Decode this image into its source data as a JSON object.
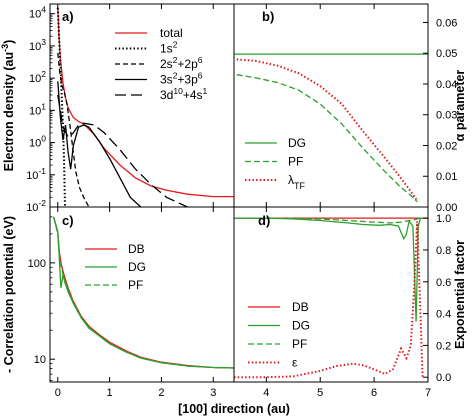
{
  "x_axis_title": "[100] direction (au)",
  "chart_data": [
    {
      "panel": "a)",
      "type": "line",
      "ylabel": "Electron density (au⁻³)",
      "yscale": "log",
      "xlim": [
        -0.15,
        3.4
      ],
      "ylim": [
        0.01,
        20000
      ],
      "x_ticks": [
        "0",
        "1",
        "2",
        "3"
      ],
      "x_tick_values": [
        0,
        1,
        2,
        3
      ],
      "y_ticks": [
        "10⁻²",
        "10⁻¹",
        "10⁰",
        "10¹",
        "10²",
        "10³",
        "10⁴"
      ],
      "y_tick_values": [
        0.01,
        0.1,
        1,
        10,
        100,
        1000,
        10000
      ],
      "grid": false,
      "legend_position": "top-right",
      "series": [
        {
          "name": "total",
          "color": "#e31a1c",
          "dash": "solid",
          "x": [
            0,
            0.02,
            0.05,
            0.1,
            0.15,
            0.2,
            0.3,
            0.4,
            0.5,
            0.7,
            0.9,
            1.2,
            1.5,
            1.8,
            2.1,
            2.5,
            3.0,
            3.4
          ],
          "y": [
            16000,
            2500,
            400,
            70,
            25,
            12,
            6,
            4.5,
            3.8,
            1.8,
            0.65,
            0.2,
            0.08,
            0.045,
            0.033,
            0.025,
            0.021,
            0.021
          ]
        },
        {
          "name": "1s²",
          "color": "#000000",
          "dash": "dotted",
          "x": [
            0,
            0.02,
            0.04,
            0.06,
            0.08,
            0.1,
            0.12,
            0.14
          ],
          "y": [
            15000,
            3000,
            600,
            120,
            20,
            3,
            0.35,
            0.01
          ]
        },
        {
          "name": "2s²+2p⁶",
          "color": "#000000",
          "dash": "short-dash",
          "x": [
            0,
            0.04,
            0.08,
            0.12,
            0.18,
            0.24,
            0.3,
            0.35,
            0.42,
            0.5,
            0.6
          ],
          "y": [
            600,
            150,
            60,
            40,
            15,
            3,
            0.5,
            0.12,
            0.04,
            0.02,
            0.01
          ]
        },
        {
          "name": "3s²+3p⁶",
          "color": "#000000",
          "dash": "solid",
          "x": [
            0,
            0.05,
            0.1,
            0.15,
            0.2,
            0.25,
            0.3,
            0.4,
            0.5,
            0.6,
            0.8,
            1.0,
            1.2,
            1.4,
            1.6
          ],
          "y": [
            80,
            6,
            1.2,
            3.5,
            0.5,
            0.15,
            0.8,
            3,
            3.5,
            3,
            1.1,
            0.32,
            0.08,
            0.02,
            0.01
          ]
        },
        {
          "name": "3d¹⁰+4s¹",
          "color": "#000000",
          "dash": "long-dash",
          "x": [
            0,
            0.1,
            0.2,
            0.3,
            0.4,
            0.5,
            0.7,
            0.9,
            1.2,
            1.5,
            1.8,
            2.1,
            2.5
          ],
          "y": [
            30,
            3,
            1.5,
            2,
            3.5,
            4,
            3.5,
            2,
            0.6,
            0.15,
            0.05,
            0.02,
            0.01
          ]
        }
      ]
    },
    {
      "panel": "b)",
      "type": "line",
      "ylabel": "α parameter",
      "yscale": "linear",
      "xlim": [
        3.4,
        7.0
      ],
      "ylim": [
        0,
        0.066
      ],
      "x_ticks": [
        "4",
        "5",
        "6",
        "7"
      ],
      "x_tick_values": [
        4,
        5,
        6,
        7
      ],
      "y_ticks": [
        "0.00",
        "0.01",
        "0.02",
        "0.03",
        "0.04",
        "0.05",
        "0.06"
      ],
      "y_tick_values": [
        0,
        0.01,
        0.02,
        0.03,
        0.04,
        0.05,
        0.06
      ],
      "grid": false,
      "legend_position": "bottom-left",
      "series": [
        {
          "name": "DG",
          "color": "#2ca02c",
          "dash": "solid",
          "x": [
            3.4,
            7.0
          ],
          "y": [
            0.0497,
            0.0497
          ]
        },
        {
          "name": "PF",
          "color": "#2ca02c",
          "dash": "dashed",
          "x": [
            3.45,
            3.8,
            4.2,
            4.6,
            5.0,
            5.4,
            5.8,
            6.2,
            6.5,
            6.7,
            6.8
          ],
          "y": [
            0.043,
            0.042,
            0.0405,
            0.038,
            0.0335,
            0.027,
            0.019,
            0.0115,
            0.0063,
            0.0035,
            0.0017
          ]
        },
        {
          "name": "λ_TF",
          "color": "#e31a1c",
          "dash": "dotted",
          "x": [
            3.45,
            3.8,
            4.2,
            4.6,
            5.0,
            5.4,
            5.8,
            6.2,
            6.5,
            6.7,
            6.8
          ],
          "y": [
            0.048,
            0.0475,
            0.046,
            0.0435,
            0.0393,
            0.0335,
            0.0245,
            0.016,
            0.0093,
            0.0046,
            0.002
          ]
        }
      ]
    },
    {
      "panel": "c)",
      "type": "line",
      "ylabel": "- Correlation potential (eV)",
      "yscale": "log",
      "xlim": [
        -0.15,
        3.4
      ],
      "ylim": [
        5.8,
        380
      ],
      "x_ticks": [
        "0",
        "1",
        "2",
        "3"
      ],
      "x_tick_values": [
        0,
        1,
        2,
        3
      ],
      "y_ticks": [
        "10",
        "100"
      ],
      "y_tick_values": [
        10,
        100
      ],
      "grid": false,
      "legend_position": "top-left",
      "series": [
        {
          "name": "DB",
          "color": "#e31a1c",
          "dash": "solid",
          "x": [
            -0.08,
            0,
            0.03,
            0.07,
            0.12,
            0.2,
            0.3,
            0.45,
            0.6,
            0.8,
            1.0,
            1.3,
            1.6,
            2.0,
            2.5,
            3.0,
            3.4
          ],
          "y": [
            300,
            210,
            130,
            95,
            75,
            55,
            40,
            28,
            22,
            18,
            15,
            12.3,
            10.5,
            9.3,
            8.6,
            8.2,
            8.1
          ]
        },
        {
          "name": "DG",
          "color": "#2ca02c",
          "dash": "solid",
          "x": [
            -0.08,
            0,
            0.03,
            0.06,
            0.1,
            0.14,
            0.2,
            0.3,
            0.45,
            0.6,
            0.8,
            1.0,
            1.3,
            1.6,
            2.0,
            2.5,
            3.0,
            3.4
          ],
          "y": [
            300,
            210,
            110,
            55,
            75,
            62,
            50,
            38,
            27,
            21,
            17.5,
            14.5,
            12,
            10.3,
            9.2,
            8.5,
            8.2,
            8.1
          ]
        },
        {
          "name": "PF",
          "color": "#2ca02c",
          "dash": "dashed",
          "x": [
            -0.08,
            0,
            0.03,
            0.07,
            0.12,
            0.2,
            0.3,
            0.45,
            0.6,
            0.8,
            1.0,
            1.3,
            1.6,
            2.0,
            2.5,
            3.0,
            3.4
          ],
          "y": [
            300,
            200,
            120,
            88,
            70,
            53,
            39,
            27.5,
            21.5,
            17.5,
            14.5,
            12,
            10.3,
            9.2,
            8.5,
            8.2,
            8.1
          ]
        }
      ]
    },
    {
      "panel": "d)",
      "type": "line",
      "ylabel": "Exponential factor",
      "yscale": "linear",
      "xlim": [
        3.4,
        7.0
      ],
      "ylim": [
        -0.03,
        1.07
      ],
      "x_ticks": [
        "3",
        "4",
        "5",
        "6",
        "7"
      ],
      "x_tick_values": [
        3,
        4,
        5,
        6,
        7
      ],
      "y_ticks": [
        "0.0",
        "0.2",
        "0.4",
        "0.6",
        "0.8",
        "1.0"
      ],
      "y_tick_values": [
        0,
        0.2,
        0.4,
        0.6,
        0.8,
        1.0
      ],
      "grid": false,
      "legend_position": "bottom-left",
      "series": [
        {
          "name": "DB",
          "color": "#e31a1c",
          "dash": "solid",
          "x": [
            3.4,
            7.0
          ],
          "y": [
            1.0,
            1.0
          ]
        },
        {
          "name": "DG",
          "color": "#2ca02c",
          "dash": "solid",
          "x": [
            3.4,
            4.0,
            4.5,
            5.0,
            5.5,
            5.8,
            6.1,
            6.3,
            6.45,
            6.55,
            6.6,
            6.65,
            6.72,
            6.78,
            6.82,
            6.86,
            6.9
          ],
          "y": [
            1.0,
            1.0,
            0.995,
            0.985,
            0.97,
            0.96,
            0.955,
            0.96,
            0.95,
            0.87,
            0.9,
            0.98,
            0.95,
            0.35,
            0.95,
            1.0,
            1.0
          ]
        },
        {
          "name": "PF",
          "color": "#2ca02c",
          "dash": "dashed",
          "x": [
            3.4,
            4.0,
            4.5,
            5.0,
            5.5,
            6.0,
            6.3,
            6.5,
            6.65,
            6.75,
            6.85,
            6.9
          ],
          "y": [
            1.0,
            1.0,
            0.998,
            0.995,
            0.985,
            0.975,
            0.97,
            0.975,
            0.985,
            0.99,
            1.0,
            1.0
          ]
        },
        {
          "name": "ε",
          "color": "#e31a1c",
          "dash": "dotted",
          "x": [
            3.4,
            4.0,
            4.5,
            5.0,
            5.3,
            5.6,
            5.8,
            6.0,
            6.2,
            6.35,
            6.5,
            6.6,
            6.68,
            6.75,
            6.8,
            6.85,
            6.9
          ],
          "y": [
            0.0,
            0.0,
            0.005,
            0.04,
            0.07,
            0.085,
            0.075,
            0.05,
            0.02,
            0.05,
            0.18,
            0.12,
            0.2,
            0.6,
            0.98,
            0.5,
            0.0
          ]
        }
      ]
    }
  ]
}
